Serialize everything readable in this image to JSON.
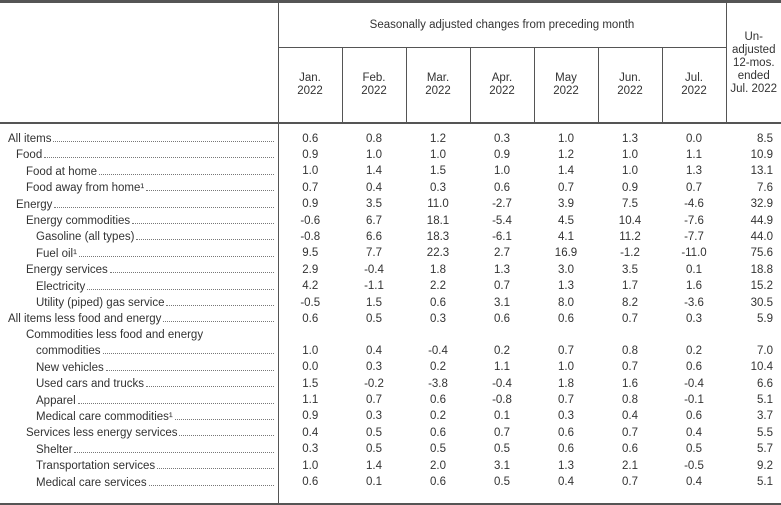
{
  "header": {
    "group_label": "Seasonally adjusted changes from preceding month",
    "unadjusted_label": "Un-adjusted 12-mos. ended Jul. 2022",
    "months": [
      {
        "m": "Jan.",
        "y": "2022"
      },
      {
        "m": "Feb.",
        "y": "2022"
      },
      {
        "m": "Mar.",
        "y": "2022"
      },
      {
        "m": "Apr.",
        "y": "2022"
      },
      {
        "m": "May",
        "y": "2022"
      },
      {
        "m": "Jun.",
        "y": "2022"
      },
      {
        "m": "Jul.",
        "y": "2022"
      }
    ]
  },
  "rows": [
    {
      "label": "All items",
      "indent": 0,
      "values": [
        "0.6",
        "0.8",
        "1.2",
        "0.3",
        "1.0",
        "1.3",
        "0.0",
        "8.5"
      ]
    },
    {
      "label": "Food",
      "indent": 1,
      "values": [
        "0.9",
        "1.0",
        "1.0",
        "0.9",
        "1.2",
        "1.0",
        "1.1",
        "10.9"
      ]
    },
    {
      "label": "Food at home",
      "indent": 2,
      "values": [
        "1.0",
        "1.4",
        "1.5",
        "1.0",
        "1.4",
        "1.0",
        "1.3",
        "13.1"
      ]
    },
    {
      "label": "Food away from home¹",
      "indent": 2,
      "values": [
        "0.7",
        "0.4",
        "0.3",
        "0.6",
        "0.7",
        "0.9",
        "0.7",
        "7.6"
      ]
    },
    {
      "label": "Energy",
      "indent": 1,
      "values": [
        "0.9",
        "3.5",
        "11.0",
        "-2.7",
        "3.9",
        "7.5",
        "-4.6",
        "32.9"
      ]
    },
    {
      "label": "Energy commodities",
      "indent": 2,
      "values": [
        "-0.6",
        "6.7",
        "18.1",
        "-5.4",
        "4.5",
        "10.4",
        "-7.6",
        "44.9"
      ]
    },
    {
      "label": "Gasoline (all types)",
      "indent": 3,
      "values": [
        "-0.8",
        "6.6",
        "18.3",
        "-6.1",
        "4.1",
        "11.2",
        "-7.7",
        "44.0"
      ]
    },
    {
      "label": "Fuel oil¹",
      "indent": 3,
      "values": [
        "9.5",
        "7.7",
        "22.3",
        "2.7",
        "16.9",
        "-1.2",
        "-11.0",
        "75.6"
      ]
    },
    {
      "label": "Energy services",
      "indent": 2,
      "values": [
        "2.9",
        "-0.4",
        "1.8",
        "1.3",
        "3.0",
        "3.5",
        "0.1",
        "18.8"
      ]
    },
    {
      "label": "Electricity",
      "indent": 3,
      "values": [
        "4.2",
        "-1.1",
        "2.2",
        "0.7",
        "1.3",
        "1.7",
        "1.6",
        "15.2"
      ]
    },
    {
      "label": "Utility (piped) gas service",
      "indent": 3,
      "values": [
        "-0.5",
        "1.5",
        "0.6",
        "3.1",
        "8.0",
        "8.2",
        "-3.6",
        "30.5"
      ]
    },
    {
      "label": "All items less food and energy",
      "indent": 0,
      "values": [
        "0.6",
        "0.5",
        "0.3",
        "0.6",
        "0.6",
        "0.7",
        "0.3",
        "5.9"
      ]
    },
    {
      "label_line1": "Commodities less food and energy",
      "label": "commodities",
      "indent": 3,
      "line1_indent": 2,
      "values": [
        "1.0",
        "0.4",
        "-0.4",
        "0.2",
        "0.7",
        "0.8",
        "0.2",
        "7.0"
      ]
    },
    {
      "label": "New vehicles",
      "indent": 3,
      "values": [
        "0.0",
        "0.3",
        "0.2",
        "1.1",
        "1.0",
        "0.7",
        "0.6",
        "10.4"
      ]
    },
    {
      "label": "Used cars and trucks",
      "indent": 3,
      "values": [
        "1.5",
        "-0.2",
        "-3.8",
        "-0.4",
        "1.8",
        "1.6",
        "-0.4",
        "6.6"
      ]
    },
    {
      "label": "Apparel",
      "indent": 3,
      "values": [
        "1.1",
        "0.7",
        "0.6",
        "-0.8",
        "0.7",
        "0.8",
        "-0.1",
        "5.1"
      ]
    },
    {
      "label": "Medical care commodities¹",
      "indent": 3,
      "values": [
        "0.9",
        "0.3",
        "0.2",
        "0.1",
        "0.3",
        "0.4",
        "0.6",
        "3.7"
      ]
    },
    {
      "label": "Services less energy services",
      "indent": 2,
      "values": [
        "0.4",
        "0.5",
        "0.6",
        "0.7",
        "0.6",
        "0.7",
        "0.4",
        "5.5"
      ]
    },
    {
      "label": "Shelter",
      "indent": 3,
      "values": [
        "0.3",
        "0.5",
        "0.5",
        "0.5",
        "0.6",
        "0.6",
        "0.5",
        "5.7"
      ]
    },
    {
      "label": "Transportation services",
      "indent": 3,
      "values": [
        "1.0",
        "1.4",
        "2.0",
        "3.1",
        "1.3",
        "2.1",
        "-0.5",
        "9.2"
      ]
    },
    {
      "label": "Medical care services",
      "indent": 3,
      "values": [
        "0.6",
        "0.1",
        "0.6",
        "0.5",
        "0.4",
        "0.7",
        "0.4",
        "5.1"
      ]
    }
  ]
}
